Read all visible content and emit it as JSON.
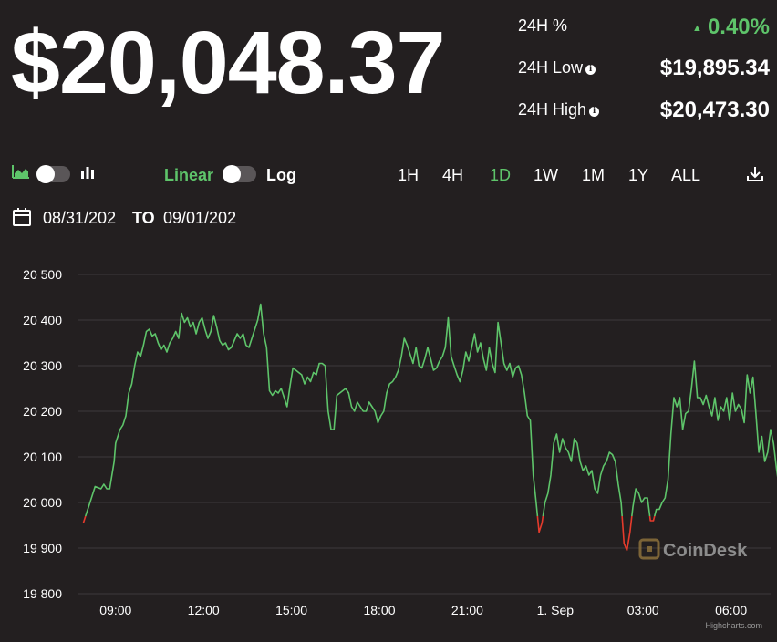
{
  "price": "$20,048.37",
  "stats": {
    "change_label": "24H %",
    "change_value": "0.40%",
    "change_arrow": "▲",
    "low_label": "24H Low",
    "low_value": "$19,895.34",
    "high_label": "24H High",
    "high_value": "$20,473.30",
    "info_icon": "i"
  },
  "controls": {
    "scale_linear": "Linear",
    "scale_log": "Log",
    "ranges": [
      "1H",
      "4H",
      "1D",
      "1W",
      "1M",
      "1Y",
      "ALL"
    ],
    "active_range": "1D",
    "date_from": "08/31/202",
    "date_to_sep": "TO",
    "date_to": "09/01/202"
  },
  "colors": {
    "background": "#231f20",
    "up": "#5ec46a",
    "down": "#e53b2c",
    "text": "#ffffff",
    "grid": "#3d3a3b"
  },
  "watermark": "CoinDesk",
  "credit": "Highcharts.com",
  "chart_data": {
    "type": "line",
    "title": "",
    "xlabel": "",
    "ylabel": "",
    "ylim": [
      19800,
      20500
    ],
    "yticks": [
      19800,
      19900,
      20000,
      20100,
      20200,
      20300,
      20400,
      20500
    ],
    "ytick_labels": [
      "19 800",
      "19 900",
      "20 000",
      "20 100",
      "20 200",
      "20 300",
      "20 400",
      "20 500"
    ],
    "xlim": [
      7.7,
      31.35
    ],
    "xticks": [
      9,
      12,
      15,
      18,
      21,
      24,
      27,
      30
    ],
    "xtick_labels": [
      "09:00",
      "12:00",
      "15:00",
      "18:00",
      "21:00",
      "1. Sep",
      "03:00",
      "06:00"
    ],
    "x_unit": "hours from 08/31 00:00",
    "grid": true,
    "legend": "none",
    "baseline": 19970,
    "series": [
      {
        "values": [
          [
            7.9,
            19955
          ],
          [
            8.0,
            19975
          ],
          [
            8.1,
            19995
          ],
          [
            8.3,
            20035
          ],
          [
            8.5,
            20030
          ],
          [
            8.6,
            20040
          ],
          [
            8.7,
            20030
          ],
          [
            8.8,
            20030
          ],
          [
            8.95,
            20090
          ],
          [
            9.0,
            20130
          ],
          [
            9.15,
            20160
          ],
          [
            9.25,
            20170
          ],
          [
            9.35,
            20190
          ],
          [
            9.45,
            20240
          ],
          [
            9.55,
            20260
          ],
          [
            9.65,
            20300
          ],
          [
            9.75,
            20330
          ],
          [
            9.85,
            20320
          ],
          [
            9.95,
            20345
          ],
          [
            10.05,
            20375
          ],
          [
            10.15,
            20380
          ],
          [
            10.25,
            20365
          ],
          [
            10.35,
            20370
          ],
          [
            10.45,
            20350
          ],
          [
            10.55,
            20335
          ],
          [
            10.65,
            20345
          ],
          [
            10.75,
            20330
          ],
          [
            10.85,
            20350
          ],
          [
            10.95,
            20360
          ],
          [
            11.05,
            20375
          ],
          [
            11.15,
            20360
          ],
          [
            11.25,
            20415
          ],
          [
            11.35,
            20395
          ],
          [
            11.45,
            20405
          ],
          [
            11.55,
            20385
          ],
          [
            11.65,
            20395
          ],
          [
            11.75,
            20370
          ],
          [
            11.85,
            20395
          ],
          [
            11.95,
            20405
          ],
          [
            12.05,
            20380
          ],
          [
            12.15,
            20360
          ],
          [
            12.25,
            20375
          ],
          [
            12.35,
            20410
          ],
          [
            12.45,
            20385
          ],
          [
            12.55,
            20355
          ],
          [
            12.65,
            20345
          ],
          [
            12.75,
            20350
          ],
          [
            12.85,
            20335
          ],
          [
            12.95,
            20340
          ],
          [
            13.05,
            20355
          ],
          [
            13.15,
            20370
          ],
          [
            13.25,
            20360
          ],
          [
            13.35,
            20370
          ],
          [
            13.45,
            20345
          ],
          [
            13.55,
            20340
          ],
          [
            13.65,
            20360
          ],
          [
            13.75,
            20380
          ],
          [
            13.85,
            20400
          ],
          [
            13.95,
            20435
          ],
          [
            14.05,
            20370
          ],
          [
            14.15,
            20340
          ],
          [
            14.25,
            20245
          ],
          [
            14.35,
            20235
          ],
          [
            14.45,
            20245
          ],
          [
            14.55,
            20240
          ],
          [
            14.65,
            20250
          ],
          [
            14.75,
            20230
          ],
          [
            14.85,
            20210
          ],
          [
            14.95,
            20255
          ],
          [
            15.05,
            20295
          ],
          [
            15.15,
            20290
          ],
          [
            15.25,
            20285
          ],
          [
            15.35,
            20280
          ],
          [
            15.45,
            20260
          ],
          [
            15.55,
            20275
          ],
          [
            15.65,
            20265
          ],
          [
            15.75,
            20285
          ],
          [
            15.85,
            20280
          ],
          [
            15.95,
            20305
          ],
          [
            16.05,
            20305
          ],
          [
            16.15,
            20300
          ],
          [
            16.25,
            20200
          ],
          [
            16.35,
            20160
          ],
          [
            16.45,
            20160
          ],
          [
            16.55,
            20235
          ],
          [
            16.65,
            20240
          ],
          [
            16.75,
            20245
          ],
          [
            16.85,
            20250
          ],
          [
            16.95,
            20240
          ],
          [
            17.05,
            20210
          ],
          [
            17.15,
            20200
          ],
          [
            17.25,
            20220
          ],
          [
            17.35,
            20210
          ],
          [
            17.45,
            20200
          ],
          [
            17.55,
            20200
          ],
          [
            17.65,
            20220
          ],
          [
            17.75,
            20210
          ],
          [
            17.85,
            20200
          ],
          [
            17.95,
            20175
          ],
          [
            18.05,
            20190
          ],
          [
            18.15,
            20200
          ],
          [
            18.25,
            20240
          ],
          [
            18.35,
            20260
          ],
          [
            18.45,
            20265
          ],
          [
            18.55,
            20275
          ],
          [
            18.65,
            20290
          ],
          [
            18.75,
            20320
          ],
          [
            18.85,
            20360
          ],
          [
            18.95,
            20345
          ],
          [
            19.05,
            20325
          ],
          [
            19.15,
            20305
          ],
          [
            19.25,
            20340
          ],
          [
            19.35,
            20300
          ],
          [
            19.45,
            20295
          ],
          [
            19.55,
            20315
          ],
          [
            19.65,
            20340
          ],
          [
            19.75,
            20315
          ],
          [
            19.85,
            20290
          ],
          [
            19.95,
            20295
          ],
          [
            20.05,
            20310
          ],
          [
            20.15,
            20320
          ],
          [
            20.25,
            20340
          ],
          [
            20.35,
            20405
          ],
          [
            20.45,
            20320
          ],
          [
            20.55,
            20300
          ],
          [
            20.65,
            20280
          ],
          [
            20.75,
            20265
          ],
          [
            20.85,
            20290
          ],
          [
            20.95,
            20330
          ],
          [
            21.05,
            20310
          ],
          [
            21.15,
            20340
          ],
          [
            21.25,
            20370
          ],
          [
            21.35,
            20330
          ],
          [
            21.45,
            20350
          ],
          [
            21.55,
            20315
          ],
          [
            21.65,
            20290
          ],
          [
            21.75,
            20340
          ],
          [
            21.85,
            20305
          ],
          [
            21.95,
            20285
          ],
          [
            22.05,
            20395
          ],
          [
            22.15,
            20350
          ],
          [
            22.25,
            20305
          ],
          [
            22.35,
            20290
          ],
          [
            22.45,
            20305
          ],
          [
            22.55,
            20275
          ],
          [
            22.65,
            20295
          ],
          [
            22.75,
            20300
          ],
          [
            22.85,
            20280
          ],
          [
            22.95,
            20240
          ],
          [
            23.05,
            20190
          ],
          [
            23.15,
            20180
          ],
          [
            23.25,
            20060
          ],
          [
            23.35,
            20000
          ],
          [
            23.45,
            19935
          ],
          [
            23.55,
            19955
          ],
          [
            23.65,
            20000
          ],
          [
            23.75,
            20020
          ],
          [
            23.85,
            20060
          ],
          [
            23.95,
            20130
          ],
          [
            24.05,
            20150
          ],
          [
            24.15,
            20110
          ],
          [
            24.25,
            20140
          ],
          [
            24.35,
            20120
          ],
          [
            24.45,
            20110
          ],
          [
            24.55,
            20090
          ],
          [
            24.65,
            20140
          ],
          [
            24.75,
            20130
          ],
          [
            24.85,
            20090
          ],
          [
            24.95,
            20070
          ],
          [
            25.05,
            20080
          ],
          [
            25.15,
            20060
          ],
          [
            25.25,
            20070
          ],
          [
            25.35,
            20030
          ],
          [
            25.45,
            20020
          ],
          [
            25.55,
            20060
          ],
          [
            25.65,
            20080
          ],
          [
            25.75,
            20090
          ],
          [
            25.85,
            20110
          ],
          [
            25.95,
            20105
          ],
          [
            26.05,
            20090
          ],
          [
            26.15,
            20040
          ],
          [
            26.25,
            20000
          ],
          [
            26.35,
            19910
          ],
          [
            26.45,
            19895
          ],
          [
            26.55,
            19935
          ],
          [
            26.65,
            19990
          ],
          [
            26.75,
            20030
          ],
          [
            26.85,
            20020
          ],
          [
            26.95,
            20000
          ],
          [
            27.05,
            20010
          ],
          [
            27.15,
            20010
          ],
          [
            27.25,
            19960
          ],
          [
            27.35,
            19960
          ],
          [
            27.45,
            19985
          ],
          [
            27.55,
            19985
          ],
          [
            27.65,
            20000
          ],
          [
            27.75,
            20010
          ],
          [
            27.85,
            20050
          ],
          [
            27.95,
            20150
          ],
          [
            28.05,
            20230
          ],
          [
            28.15,
            20210
          ],
          [
            28.25,
            20230
          ],
          [
            28.35,
            20160
          ],
          [
            28.45,
            20195
          ],
          [
            28.55,
            20200
          ],
          [
            28.65,
            20250
          ],
          [
            28.75,
            20310
          ],
          [
            28.85,
            20230
          ],
          [
            28.95,
            20230
          ],
          [
            29.05,
            20215
          ],
          [
            29.15,
            20235
          ],
          [
            29.25,
            20210
          ],
          [
            29.35,
            20190
          ],
          [
            29.45,
            20230
          ],
          [
            29.55,
            20180
          ],
          [
            29.65,
            20210
          ],
          [
            29.75,
            20200
          ],
          [
            29.85,
            20230
          ],
          [
            29.95,
            20180
          ],
          [
            30.05,
            20240
          ],
          [
            30.15,
            20200
          ],
          [
            30.25,
            20215
          ],
          [
            30.35,
            20205
          ],
          [
            30.45,
            20175
          ],
          [
            30.55,
            20280
          ],
          [
            30.65,
            20240
          ],
          [
            30.75,
            20275
          ],
          [
            30.85,
            20195
          ],
          [
            30.95,
            20110
          ],
          [
            31.05,
            20145
          ],
          [
            31.15,
            20090
          ],
          [
            31.25,
            20110
          ],
          [
            31.35,
            20160
          ],
          [
            31.45,
            20130
          ],
          [
            31.55,
            20075
          ],
          [
            31.65,
            20030
          ],
          [
            31.75,
            20050
          ],
          [
            31.85,
            19990
          ],
          [
            31.95,
            19970
          ],
          [
            32.05,
            20030
          ],
          [
            32.15,
            20050
          ],
          [
            32.25,
            20060
          ],
          [
            32.35,
            20120
          ],
          [
            32.45,
            20050
          ],
          [
            32.55,
            20110
          ],
          [
            32.65,
            20070
          ],
          [
            32.75,
            19955
          ],
          [
            32.85,
            20000
          ],
          [
            32.95,
            20050
          ]
        ]
      }
    ]
  }
}
